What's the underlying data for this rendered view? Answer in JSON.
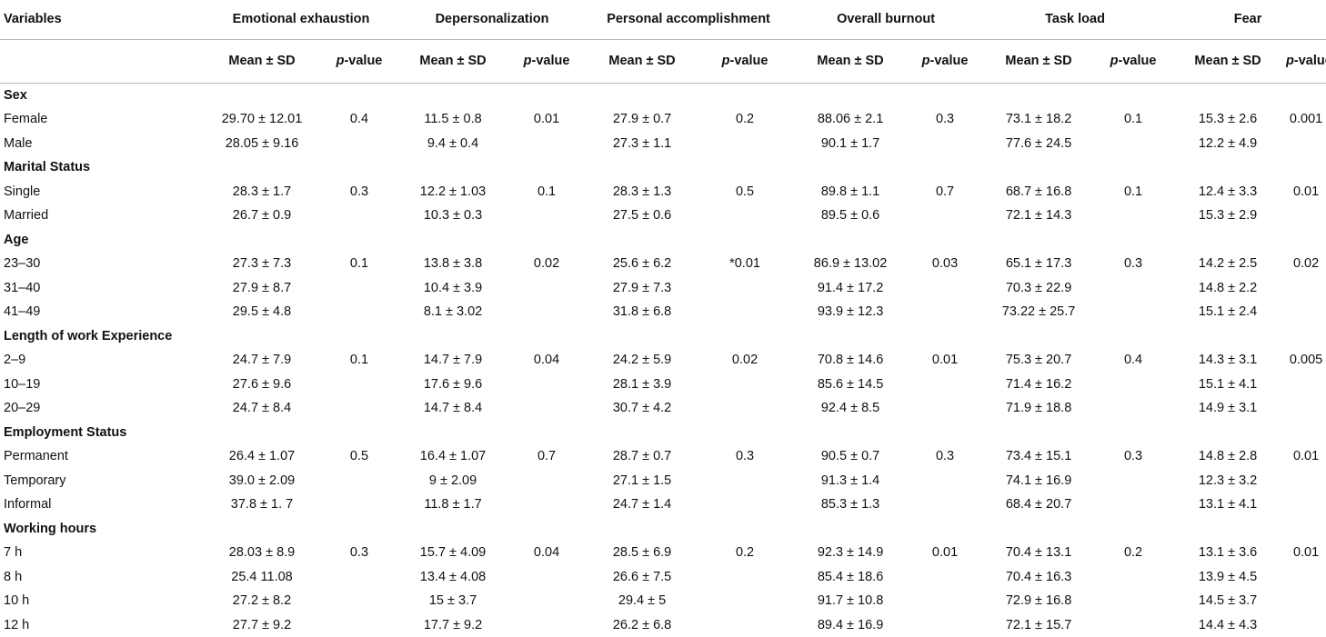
{
  "table": {
    "header_variables": "Variables",
    "measures": [
      "Emotional exhaustion",
      "Depersonalization",
      "Personal accomplishment",
      "Overall burnout",
      "Task load",
      "Fear"
    ],
    "sub_mean": "Mean ± SD",
    "sub_p_prefix": "p",
    "sub_p_suffix": "-value",
    "groups": [
      {
        "name": "Sex",
        "rows": [
          {
            "label": "Female",
            "cells": [
              "29.70 ± 12.01",
              "0.4",
              "11.5 ± 0.8",
              "0.01",
              "27.9 ± 0.7",
              "0.2",
              "88.06 ± 2.1",
              "0.3",
              "73.1 ± 18.2",
              "0.1",
              "15.3 ± 2.6",
              "0.001"
            ]
          },
          {
            "label": "Male",
            "cells": [
              "28.05 ± 9.16",
              "",
              "9.4 ± 0.4",
              "",
              "27.3 ± 1.1",
              "",
              "90.1 ± 1.7",
              "",
              "77.6 ± 24.5",
              "",
              "12.2 ± 4.9",
              ""
            ]
          }
        ]
      },
      {
        "name": "Marital Status",
        "rows": [
          {
            "label": "Single",
            "cells": [
              "28.3 ± 1.7",
              "0.3",
              "12.2 ± 1.03",
              "0.1",
              "28.3 ± 1.3",
              "0.5",
              "89.8 ± 1.1",
              "0.7",
              "68.7 ± 16.8",
              "0.1",
              "12.4 ± 3.3",
              "0.01"
            ]
          },
          {
            "label": "Married",
            "cells": [
              "26.7 ± 0.9",
              "",
              "10.3 ± 0.3",
              "",
              "27.5 ± 0.6",
              "",
              "89.5 ± 0.6",
              "",
              "72.1 ± 14.3",
              "",
              "15.3 ± 2.9",
              ""
            ]
          }
        ]
      },
      {
        "name": "Age",
        "rows": [
          {
            "label": "23–30",
            "cells": [
              "27.3 ± 7.3",
              "0.1",
              "13.8 ± 3.8",
              "0.02",
              "25.6 ± 6.2",
              "*0.01",
              "86.9 ± 13.02",
              "0.03",
              "65.1 ± 17.3",
              "0.3",
              "14.2 ± 2.5",
              "0.02"
            ]
          },
          {
            "label": "31–40",
            "cells": [
              "27.9 ± 8.7",
              "",
              "10.4 ± 3.9",
              "",
              "27.9 ± 7.3",
              "",
              "91.4 ± 17.2",
              "",
              "70.3 ± 22.9",
              "",
              "14.8 ± 2.2",
              ""
            ]
          },
          {
            "label": "41–49",
            "cells": [
              "29.5 ± 4.8",
              "",
              "8.1 ± 3.02",
              "",
              "31.8 ± 6.8",
              "",
              "93.9 ± 12.3",
              "",
              "73.22 ± 25.7",
              "",
              "15.1 ± 2.4",
              ""
            ]
          }
        ]
      },
      {
        "name": "Length of work Experience",
        "rows": [
          {
            "label": "2–9",
            "cells": [
              "24.7 ± 7.9",
              "0.1",
              "14.7 ± 7.9",
              "0.04",
              "24.2 ± 5.9",
              "0.02",
              "70.8 ± 14.6",
              "0.01",
              "75.3 ± 20.7",
              "0.4",
              "14.3 ± 3.1",
              "0.005"
            ]
          },
          {
            "label": "10–19",
            "cells": [
              "27.6 ± 9.6",
              "",
              "17.6 ± 9.6",
              "",
              "28.1 ± 3.9",
              "",
              "85.6 ± 14.5",
              "",
              "71.4 ± 16.2",
              "",
              "15.1 ± 4.1",
              ""
            ]
          },
          {
            "label": "20–29",
            "cells": [
              "24.7 ± 8.4",
              "",
              "14.7 ± 8.4",
              "",
              "30.7 ± 4.2",
              "",
              "92.4 ± 8.5",
              "",
              "71.9 ± 18.8",
              "",
              "14.9 ± 3.1",
              ""
            ]
          }
        ]
      },
      {
        "name": "Employment Status",
        "rows": [
          {
            "label": "Permanent",
            "cells": [
              "26.4 ± 1.07",
              "0.5",
              "16.4 ± 1.07",
              "0.7",
              "28.7 ± 0.7",
              "0.3",
              "90.5 ± 0.7",
              "0.3",
              "73.4 ± 15.1",
              "0.3",
              "14.8 ± 2.8",
              "0.01"
            ]
          },
          {
            "label": "Temporary",
            "cells": [
              "39.0 ± 2.09",
              "",
              "9 ± 2.09",
              "",
              "27.1 ± 1.5",
              "",
              "91.3 ± 1.4",
              "",
              "74.1 ± 16.9",
              "",
              "12.3 ± 3.2",
              ""
            ]
          },
          {
            "label": "Informal",
            "cells": [
              "37.8 ± 1. 7",
              "",
              "11.8 ± 1.7",
              "",
              "24.7 ± 1.4",
              "",
              "85.3 ± 1.3",
              "",
              "68.4 ± 20.7",
              "",
              "13.1 ± 4.1",
              ""
            ]
          }
        ]
      },
      {
        "name": "Working hours",
        "rows": [
          {
            "label": "7 h",
            "cells": [
              "28.03 ± 8.9",
              "0.3",
              "15.7 ± 4.09",
              "0.04",
              "28.5 ± 6.9",
              "0.2",
              "92.3 ± 14.9",
              "0.01",
              "70.4 ± 13.1",
              "0.2",
              "13.1 ± 3.6",
              "0.01"
            ]
          },
          {
            "label": "8 h",
            "cells": [
              "25.4 11.08",
              "",
              "13.4 ± 4.08",
              "",
              "26.6 ± 7.5",
              "",
              "85.4 ± 18.6",
              "",
              "70.4 ± 16.3",
              "",
              "13.9 ± 4.5",
              ""
            ]
          },
          {
            "label": "10 h",
            "cells": [
              "27.2 ± 8.2",
              "",
              "15 ± 3.7",
              "",
              "29.4 ± 5",
              "",
              "91.7 ± 10.8",
              "",
              "72.9 ± 16.8",
              "",
              "14.5 ± 3.7",
              ""
            ]
          },
          {
            "label": "12 h",
            "cells": [
              "27.7 ± 9.2",
              "",
              "17.7 ± 9.2",
              "",
              "26.2 ± 6.8",
              "",
              "89.4 ± 16.9",
              "",
              "72.1 ± 15.7",
              "",
              "14.4 ± 4.3",
              ""
            ]
          }
        ]
      }
    ]
  }
}
